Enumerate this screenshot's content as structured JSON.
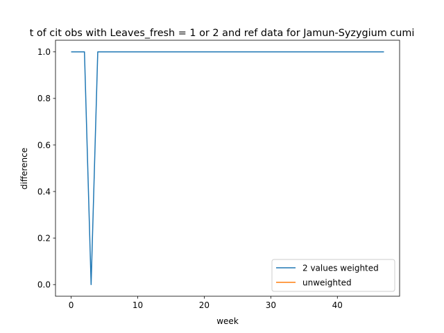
{
  "chart_data": {
    "type": "line",
    "title": "t of cit obs with Leaves_fresh = 1 or 2 and ref data for Jamun-Syzygium cumi",
    "xlabel": "week",
    "ylabel": "difference",
    "xlim": [
      -2.35,
      49.35
    ],
    "ylim": [
      -0.05,
      1.05
    ],
    "xticks": [
      0,
      10,
      20,
      30,
      40
    ],
    "yticks": [
      0.0,
      0.2,
      0.4,
      0.6,
      0.8,
      1.0
    ],
    "xtick_labels": [
      "0",
      "10",
      "20",
      "30",
      "40"
    ],
    "ytick_labels": [
      "0.0",
      "0.2",
      "0.4",
      "0.6",
      "0.8",
      "1.0"
    ],
    "grid": false,
    "legend_position": "lower-right",
    "series": [
      {
        "name": "2 values weighted",
        "color": "#1f77b4",
        "x": [
          0,
          1,
          2,
          3,
          4,
          5,
          6,
          7,
          8,
          9,
          10,
          11,
          12,
          13,
          14,
          15,
          16,
          17,
          18,
          19,
          20,
          21,
          22,
          23,
          24,
          25,
          26,
          27,
          28,
          29,
          30,
          31,
          32,
          33,
          34,
          35,
          36,
          37,
          38,
          39,
          40,
          41,
          42,
          43,
          44,
          45,
          46,
          47
        ],
        "y": [
          1,
          1,
          1,
          0,
          1,
          1,
          1,
          1,
          1,
          1,
          1,
          1,
          1,
          1,
          1,
          1,
          1,
          1,
          1,
          1,
          1,
          1,
          1,
          1,
          1,
          1,
          1,
          1,
          1,
          1,
          1,
          1,
          1,
          1,
          1,
          1,
          1,
          1,
          1,
          1,
          1,
          1,
          1,
          1,
          1,
          1,
          1,
          1
        ]
      },
      {
        "name": "unweighted",
        "color": "#ff7f0e",
        "x": [],
        "y": []
      }
    ]
  }
}
